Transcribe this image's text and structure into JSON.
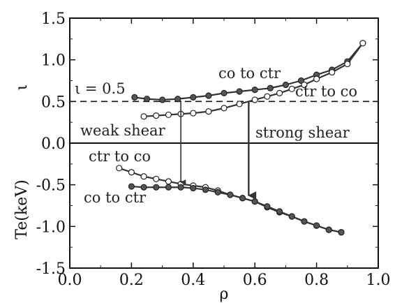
{
  "chart_data": {
    "type": "line",
    "title": "",
    "xlabel": "ρ",
    "ylabel_upper": "ι",
    "ylabel_lower": "Te(keV)",
    "xlim": [
      0.0,
      1.0
    ],
    "ylim": [
      -1.5,
      1.5
    ],
    "xticks": [
      "0.0",
      "0.2",
      "0.4",
      "0.6",
      "0.8",
      "1.0"
    ],
    "yticks": [
      "-1.5",
      "-1.0",
      "-0.5",
      "0.0",
      "0.5",
      "1.0",
      "1.5"
    ],
    "zero_line": 0.0,
    "reference_line": {
      "y": 0.5,
      "label": "ι = 0.5"
    },
    "annotations": [
      {
        "text": "weak shear"
      },
      {
        "text": "strong shear"
      }
    ],
    "arrows": [
      {
        "x": 0.36,
        "from_y": 0.51,
        "to_y": -0.47
      },
      {
        "x": 0.58,
        "from_y": 0.5,
        "to_y": -0.63
      }
    ],
    "series": [
      {
        "name": "co to ctr",
        "group": "iota",
        "marker": "filled",
        "x": [
          0.21,
          0.25,
          0.3,
          0.35,
          0.4,
          0.45,
          0.5,
          0.55,
          0.6,
          0.65,
          0.7,
          0.75,
          0.8,
          0.85,
          0.9,
          0.95
        ],
        "y": [
          0.55,
          0.53,
          0.52,
          0.53,
          0.55,
          0.57,
          0.6,
          0.62,
          0.64,
          0.66,
          0.7,
          0.75,
          0.82,
          0.88,
          0.98,
          1.2
        ]
      },
      {
        "name": "ctr to co",
        "group": "iota",
        "marker": "open",
        "x": [
          0.24,
          0.28,
          0.32,
          0.36,
          0.4,
          0.45,
          0.5,
          0.55,
          0.6,
          0.64,
          0.68,
          0.72,
          0.76,
          0.8,
          0.85,
          0.9,
          0.95
        ],
        "y": [
          0.32,
          0.33,
          0.34,
          0.35,
          0.36,
          0.38,
          0.42,
          0.47,
          0.52,
          0.56,
          0.6,
          0.65,
          0.7,
          0.77,
          0.85,
          0.95,
          1.2
        ]
      },
      {
        "name": "ctr to co",
        "group": "te",
        "marker": "open",
        "x": [
          0.16,
          0.2,
          0.24,
          0.28,
          0.32,
          0.36,
          0.4,
          0.44,
          0.48,
          0.52,
          0.56,
          0.6,
          0.64,
          0.68,
          0.72,
          0.76,
          0.8,
          0.84,
          0.88
        ],
        "y": [
          -0.3,
          -0.35,
          -0.4,
          -0.43,
          -0.46,
          -0.49,
          -0.51,
          -0.53,
          -0.57,
          -0.62,
          -0.66,
          -0.7,
          -0.77,
          -0.83,
          -0.88,
          -0.94,
          -0.99,
          -1.04,
          -1.07
        ]
      },
      {
        "name": "co to ctr",
        "group": "te",
        "marker": "filled",
        "x": [
          0.2,
          0.24,
          0.28,
          0.32,
          0.36,
          0.4,
          0.44,
          0.48,
          0.52,
          0.56,
          0.6,
          0.64,
          0.68,
          0.72,
          0.76,
          0.8,
          0.84,
          0.88
        ],
        "y": [
          -0.52,
          -0.53,
          -0.53,
          -0.53,
          -0.53,
          -0.54,
          -0.56,
          -0.59,
          -0.62,
          -0.66,
          -0.7,
          -0.76,
          -0.82,
          -0.88,
          -0.94,
          -0.99,
          -1.04,
          -1.07
        ]
      }
    ]
  }
}
